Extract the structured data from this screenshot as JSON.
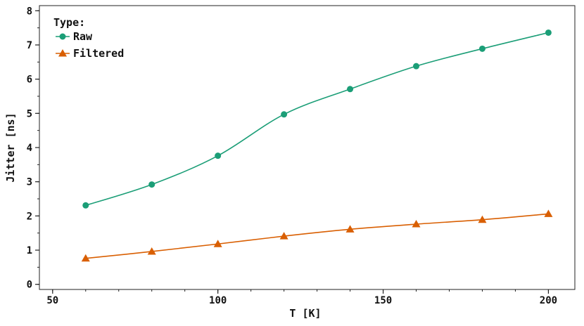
{
  "chart_data": {
    "type": "line",
    "xlabel": "T [K]",
    "ylabel": "Jitter [ns]",
    "xlim": [
      46,
      208
    ],
    "ylim": [
      -0.15,
      8.15
    ],
    "xticks": [
      50,
      100,
      150,
      200
    ],
    "xminor_step": 10,
    "yticks": [
      0,
      1,
      2,
      3,
      4,
      5,
      6,
      7,
      8
    ],
    "yminor_step": 0.5,
    "grid": false,
    "legend": {
      "title": "Type:",
      "position": "top-left"
    },
    "x": [
      60,
      80,
      100,
      120,
      140,
      160,
      180,
      200
    ],
    "series": [
      {
        "name": "Raw",
        "color": "#1b9e77",
        "marker": "circle",
        "values": [
          2.31,
          2.92,
          3.76,
          4.97,
          5.71,
          6.38,
          6.89,
          7.36
        ]
      },
      {
        "name": "Filtered",
        "color": "#d95f02",
        "marker": "triangle",
        "values": [
          0.76,
          0.96,
          1.18,
          1.41,
          1.61,
          1.76,
          1.89,
          2.06
        ]
      }
    ]
  }
}
